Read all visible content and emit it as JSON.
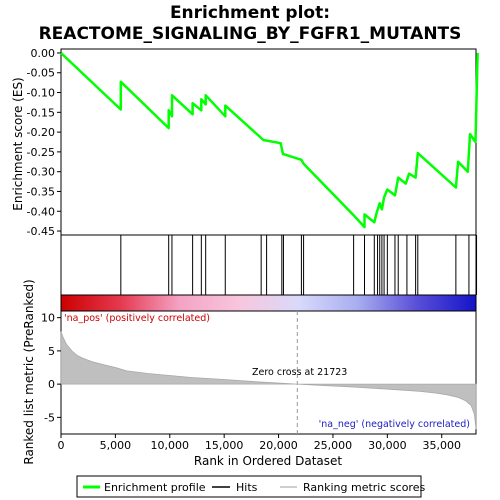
{
  "chart_data": {
    "type": "line",
    "title": "Enrichment plot:",
    "subtitle": "REACTOME_SIGNALING_BY_FGFR1_MUTANTS",
    "top_panel": {
      "ylabel": "Enrichment score (ES)",
      "ylim": [
        -0.46,
        0.01
      ],
      "yticks": [
        0.0,
        -0.05,
        -0.1,
        -0.15,
        -0.2,
        -0.25,
        -0.3,
        -0.35,
        -0.4,
        -0.45
      ],
      "ytick_labels": [
        "0.00",
        "-0.05",
        "-0.10",
        "-0.15",
        "-0.20",
        "-0.25",
        "-0.30",
        "-0.35",
        "-0.40",
        "-0.45"
      ],
      "series": [
        {
          "name": "Enrichment profile",
          "color": "#00ff00",
          "x": [
            0,
            5500,
            5500,
            9900,
            9900,
            10200,
            10200,
            12100,
            12100,
            12900,
            12900,
            13300,
            13300,
            15100,
            15100,
            18400,
            18600,
            20200,
            20400,
            22100,
            22300,
            26900,
            27900,
            27900,
            28800,
            29000,
            29300,
            29500,
            29700,
            30000,
            30700,
            31000,
            31700,
            32000,
            32600,
            32800,
            36300,
            36500,
            37400,
            37600,
            38100,
            38300
          ],
          "y": [
            0.0,
            -0.143,
            -0.073,
            -0.19,
            -0.145,
            -0.16,
            -0.107,
            -0.155,
            -0.127,
            -0.145,
            -0.117,
            -0.13,
            -0.107,
            -0.16,
            -0.133,
            -0.215,
            -0.22,
            -0.228,
            -0.255,
            -0.27,
            -0.28,
            -0.41,
            -0.44,
            -0.408,
            -0.428,
            -0.405,
            -0.38,
            -0.395,
            -0.365,
            -0.345,
            -0.36,
            -0.315,
            -0.33,
            -0.305,
            -0.315,
            -0.253,
            -0.34,
            -0.275,
            -0.3,
            -0.205,
            -0.225,
            0.0
          ]
        }
      ]
    },
    "hits_panel": {
      "positions": [
        5500,
        9900,
        10200,
        12100,
        12900,
        13300,
        15100,
        18400,
        18900,
        20300,
        20450,
        22100,
        22300,
        26900,
        27900,
        28800,
        29100,
        29300,
        29500,
        29700,
        30000,
        30700,
        31000,
        31800,
        32600,
        32800,
        36300,
        37500,
        38200
      ]
    },
    "bottom_panel": {
      "ylabel": "Ranked list metric (PreRanked)",
      "xlabel": "Rank in Ordered Dataset",
      "ylim": [
        -7.5,
        11
      ],
      "yticks": [
        10,
        5,
        0,
        -5
      ],
      "ytick_labels": [
        "10",
        "5",
        "0",
        "-5"
      ],
      "xlim": [
        0,
        40000
      ],
      "xticks": [
        0,
        5000,
        10000,
        15000,
        20000,
        25000,
        30000,
        35000
      ],
      "xtick_labels": [
        "0",
        "5,000",
        "10,000",
        "15,000",
        "20,000",
        "25,000",
        "30,000",
        "35,000"
      ],
      "metric_x": [
        0,
        200,
        500,
        1000,
        1500,
        2000,
        3000,
        4000,
        5000,
        6000,
        8000,
        10000,
        12000,
        15000,
        18000,
        21723,
        24000,
        27000,
        29000,
        31000,
        33000,
        34500,
        35500,
        36500,
        37200,
        37700,
        38000,
        38150
      ],
      "metric_y": [
        7.9,
        7.0,
        6.0,
        5.0,
        4.3,
        3.9,
        3.3,
        2.9,
        2.5,
        2.0,
        1.6,
        1.3,
        1.0,
        0.7,
        0.35,
        0.0,
        -0.2,
        -0.45,
        -0.65,
        -0.85,
        -1.1,
        -1.35,
        -1.6,
        -2.0,
        -2.5,
        -3.2,
        -4.5,
        -6.8
      ],
      "zero_cross_rank": 21723,
      "annotations": {
        "pos": "'na_pos' (positively correlated)",
        "neg": "'na_neg' (negatively correlated)",
        "zero": "Zero cross at 21723"
      }
    },
    "gradient_bar": {
      "colors": [
        "#cc0000",
        "#e5394f",
        "#f4a3c5",
        "#f8c6dc",
        "#d9dafa",
        "#a8aef0",
        "#5a4fd8",
        "#1414c8"
      ]
    },
    "legend": {
      "placement": "bottom",
      "items": [
        {
          "label": "Enrichment profile",
          "color": "#00ff00"
        },
        {
          "label": "Hits",
          "color": "#000000"
        },
        {
          "label": "Ranking metric scores",
          "color": "#bfbfbf"
        }
      ]
    },
    "xmax": 38150
  }
}
